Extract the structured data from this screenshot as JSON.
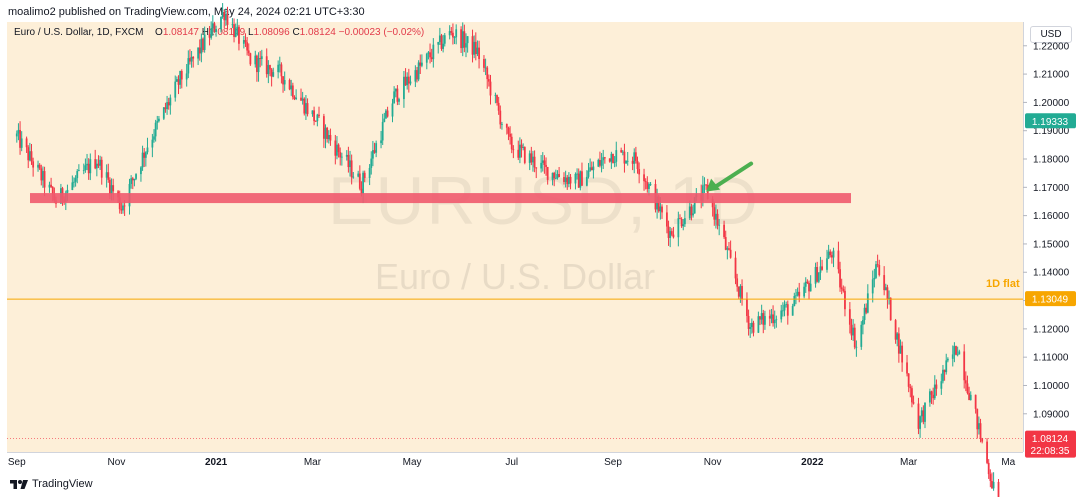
{
  "header": {
    "published": "moalimo2 published on TradingView.com, May 24, 2024 02:21 UTC+3:30"
  },
  "legend": {
    "symbol": "Euro / U.S. Dollar, 1D, FXCM",
    "o_label": "O",
    "o": "1.08147",
    "h_label": "H",
    "h": "1.08149",
    "l_label": "L",
    "l": "1.08096",
    "c_label": "C",
    "c": "1.08124",
    "change": "−0.00023 (−0.02%)"
  },
  "watermark": {
    "ticker": "EURUSD, 1D",
    "name": "Euro / U.S. Dollar"
  },
  "currency": "USD",
  "annotations": {
    "flat_label": "1D flat"
  },
  "price_badges": {
    "green": "1.19333",
    "orange": "1.13049",
    "red_price": "1.08124",
    "red_time": "22:08:35"
  },
  "footer": {
    "brand": "TradingView"
  },
  "colors": {
    "up": "#22ab94",
    "down": "#f23645",
    "zone": "#f05a6e",
    "flat": "#f7a600",
    "arrow": "#4caf50",
    "bg": "#fdefd8"
  },
  "chart_data": {
    "type": "candlestick",
    "title": "Euro / U.S. Dollar, 1D, FXCM",
    "ylabel": "USD",
    "y_ticks": [
      "1.22000",
      "1.21000",
      "1.20000",
      "1.19000",
      "1.18000",
      "1.17000",
      "1.16000",
      "1.15000",
      "1.14000",
      "1.13000",
      "1.12000",
      "1.11000",
      "1.10000",
      "1.09000"
    ],
    "x_ticks": [
      "Sep",
      "Nov",
      "2021",
      "Mar",
      "May",
      "Jul",
      "Sep",
      "Nov",
      "2022",
      "Mar",
      "Ma"
    ],
    "ylim": [
      1.0765,
      1.2284
    ],
    "horizontal_zone": {
      "price": 1.1662,
      "from": "Sep 2020",
      "to": "Dec 2021"
    },
    "horizontal_line": {
      "price": 1.13049,
      "label": "1D flat"
    },
    "arrow_target": {
      "date": "Oct 2021",
      "price": 1.1685
    },
    "close_path": [
      {
        "x": "2020-09-01",
        "y": 1.188
      },
      {
        "x": "2020-09-25",
        "y": 1.165
      },
      {
        "x": "2020-10-20",
        "y": 1.18
      },
      {
        "x": "2020-11-04",
        "y": 1.163
      },
      {
        "x": "2020-11-20",
        "y": 1.185
      },
      {
        "x": "2020-12-10",
        "y": 1.208
      },
      {
        "x": "2021-01-06",
        "y": 1.232
      },
      {
        "x": "2021-01-22",
        "y": 1.215
      },
      {
        "x": "2021-02-10",
        "y": 1.21
      },
      {
        "x": "2021-03-08",
        "y": 1.19
      },
      {
        "x": "2021-03-31",
        "y": 1.171
      },
      {
        "x": "2021-04-20",
        "y": 1.202
      },
      {
        "x": "2021-05-25",
        "y": 1.225
      },
      {
        "x": "2021-06-10",
        "y": 1.218
      },
      {
        "x": "2021-06-30",
        "y": 1.185
      },
      {
        "x": "2021-07-22",
        "y": 1.176
      },
      {
        "x": "2021-08-10",
        "y": 1.172
      },
      {
        "x": "2021-08-31",
        "y": 1.182
      },
      {
        "x": "2021-09-15",
        "y": 1.18
      },
      {
        "x": "2021-10-06",
        "y": 1.154
      },
      {
        "x": "2021-10-28",
        "y": 1.169
      },
      {
        "x": "2021-11-05",
        "y": 1.156
      },
      {
        "x": "2021-11-24",
        "y": 1.121
      },
      {
        "x": "2021-12-20",
        "y": 1.128
      },
      {
        "x": "2022-01-13",
        "y": 1.147
      },
      {
        "x": "2022-01-28",
        "y": 1.114
      },
      {
        "x": "2022-02-10",
        "y": 1.144
      },
      {
        "x": "2022-03-07",
        "y": 1.087
      },
      {
        "x": "2022-03-31",
        "y": 1.114
      },
      {
        "x": "2022-04-28",
        "y": 1.05
      }
    ]
  }
}
